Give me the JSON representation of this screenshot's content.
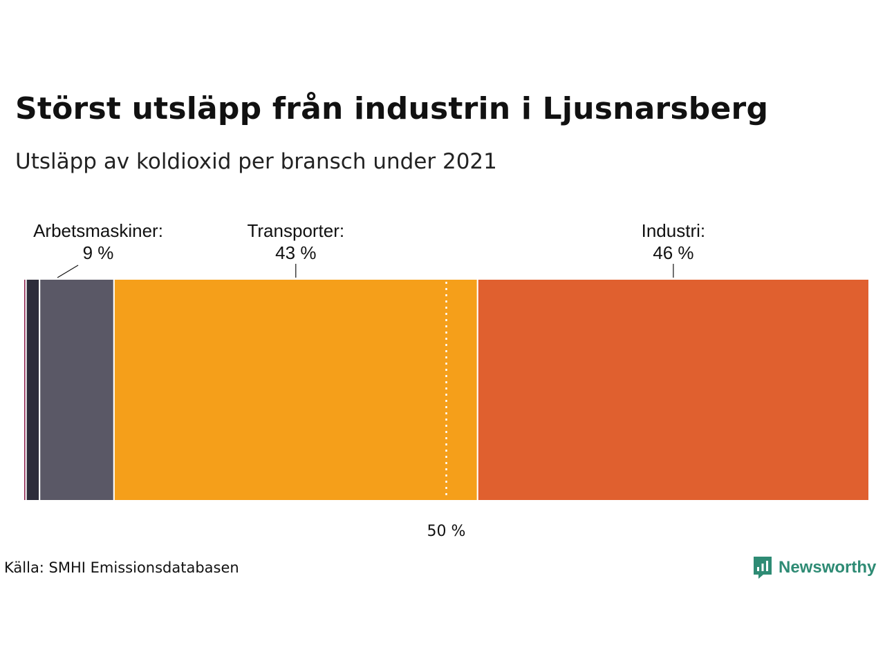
{
  "title": "Störst utsläpp från industrin i Ljusnarsberg",
  "subtitle": "Utsläpp av koldioxid per bransch under 2021",
  "source": "Källa: SMHI Emissionsdatabasen",
  "brand": {
    "name": "Newsworthy",
    "icon": "newsworthy-logo-icon",
    "color": "#2e8b74"
  },
  "chart_data": {
    "type": "bar",
    "orientation": "horizontal-stacked",
    "unit": "%",
    "xlim": [
      0,
      100
    ],
    "reference_line": {
      "value": 50,
      "label": "50 %"
    },
    "segments": [
      {
        "value": 0.3,
        "color": "#8b1e4b",
        "label": "",
        "value_label": ""
      },
      {
        "value": 1.6,
        "color": "#2d2c3a",
        "label": "",
        "value_label": ""
      },
      {
        "value": 8.8,
        "color": "#5a5866",
        "label": "Arbetsmaskiner:",
        "value_label": "9 %"
      },
      {
        "value": 43.0,
        "color": "#f59f1a",
        "label": "Transporter:",
        "value_label": "43 %"
      },
      {
        "value": 46.3,
        "color": "#e0602f",
        "label": "Industri:",
        "value_label": "46 %"
      }
    ]
  }
}
